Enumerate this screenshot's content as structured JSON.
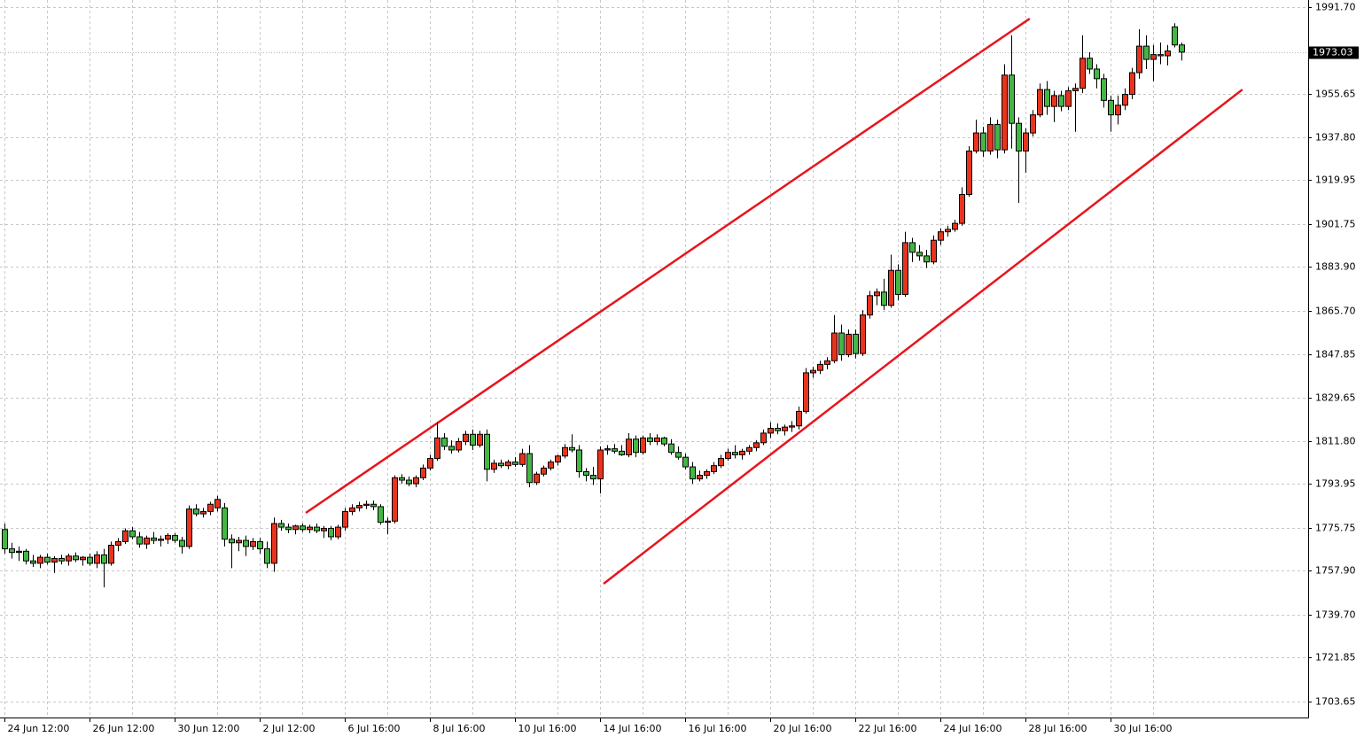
{
  "chart_data": {
    "type": "candlestick",
    "up_color": "#e8341c",
    "down_color": "#44b644",
    "wick_color": "#000000",
    "grid": true,
    "ylim": [
      1697.04,
      1994.64
    ],
    "yticks": [
      {
        "value": 1991.7,
        "label": "1991.70"
      },
      1955.65,
      {
        "value": 1937.8,
        "label": "1937.80"
      },
      1919.95,
      1901.75,
      {
        "value": 1883.9,
        "label": "1883.90"
      },
      {
        "value": 1865.7,
        "label": "1865.70"
      },
      1847.85,
      1829.65,
      {
        "value": 1811.8,
        "label": "1811.80"
      },
      1793.95,
      1775.75,
      {
        "value": 1757.9,
        "label": "1757.90"
      },
      {
        "value": 1739.7,
        "label": "1739.70"
      },
      1721.85,
      1703.65
    ],
    "last_price": 1973.03,
    "last_price_color": "#000000",
    "trend_lines": [
      {
        "color": "#e8141c",
        "x": [
          42.5,
          144.6
        ],
        "y": [
          1781.9,
          1986.9
        ]
      },
      {
        "color": "#e8141c",
        "x": [
          84.5,
          174.6
        ],
        "y": [
          1752.5,
          1957.5
        ]
      }
    ],
    "categories": [
      "24 Jun 12:00",
      null,
      null,
      null,
      null,
      null,
      null,
      null,
      null,
      null,
      null,
      null,
      "26 Jun 12:00",
      null,
      null,
      null,
      null,
      null,
      null,
      null,
      null,
      null,
      null,
      null,
      "30 Jun 12:00",
      null,
      null,
      null,
      null,
      null,
      null,
      null,
      null,
      null,
      null,
      null,
      "2 Jul 12:00",
      null,
      null,
      null,
      null,
      null,
      null,
      null,
      null,
      null,
      null,
      null,
      "6 Jul 16:00",
      null,
      null,
      null,
      null,
      null,
      null,
      null,
      null,
      null,
      null,
      null,
      "8 Jul 16:00",
      null,
      null,
      null,
      null,
      null,
      null,
      null,
      null,
      null,
      null,
      null,
      "10 Jul 16:00",
      null,
      null,
      null,
      null,
      null,
      null,
      null,
      null,
      null,
      null,
      null,
      "14 Jul 16:00",
      null,
      null,
      null,
      null,
      null,
      null,
      null,
      null,
      null,
      null,
      null,
      "16 Jul 16:00",
      null,
      null,
      null,
      null,
      null,
      null,
      null,
      null,
      null,
      null,
      null,
      "20 Jul 16:00",
      null,
      null,
      null,
      null,
      null,
      null,
      null,
      null,
      null,
      null,
      null,
      "22 Jul 16:00",
      null,
      null,
      null,
      null,
      null,
      null,
      null,
      null,
      null,
      null,
      null,
      "24 Jul 16:00",
      null,
      null,
      null,
      null,
      null,
      null,
      null,
      null,
      null,
      null,
      null,
      "28 Jul 16:00",
      null,
      null,
      null,
      null,
      null,
      null,
      null,
      null,
      null,
      null,
      null,
      "30 Jul 16:00",
      null,
      null,
      null,
      null,
      null,
      null,
      null,
      null,
      null,
      null
    ],
    "open": [
      1775,
      1767,
      1765.5,
      1766,
      1762,
      1761,
      1763.5,
      1761.5,
      1763,
      1762,
      1764,
      1762.5,
      1763.5,
      1761,
      1764.5,
      1761,
      1768.5,
      1770,
      1774.5,
      1772,
      1769,
      1771.5,
      1770.5,
      1771,
      1772.5,
      1770.5,
      1768,
      1783.5,
      1781.5,
      1782.5,
      1784,
      1784,
      1771,
      1769.5,
      1770.5,
      1768,
      1770,
      1767,
      1761,
      1777.5,
      1776,
      1775,
      1776.5,
      1775,
      1776,
      1774.5,
      1775.5,
      1772,
      1776,
      1782.5,
      1784,
      1785,
      1785.5,
      1784.5,
      1778,
      1778.5,
      1796.5,
      1795.5,
      1794,
      1796.5,
      1800.5,
      1804.5,
      1813,
      1809.5,
      1808,
      1811.5,
      1814.5,
      1810,
      1814.5,
      1800,
      1802.5,
      1801.5,
      1803,
      1802,
      1806.5,
      1794.5,
      1798,
      1800.5,
      1803,
      1805.5,
      1809,
      1808,
      1799,
      1797.5,
      1796,
      1808,
      1808.5,
      1807.5,
      1806,
      1812.5,
      1807,
      1813,
      1811.5,
      1813,
      1810.5,
      1807,
      1805,
      1801,
      1796,
      1797.5,
      1799,
      1801.5,
      1804.5,
      1807,
      1806,
      1807.5,
      1809,
      1811,
      1815,
      1817,
      1816,
      1817.5,
      1818,
      1824,
      1840,
      1841,
      1843.5,
      1845,
      1856.5,
      1847.5,
      1856,
      1848,
      1864,
      1872,
      1873.5,
      1868,
      1882.5,
      1872.5,
      1894,
      1890,
      1888.5,
      1886,
      1895,
      1898.5,
      1899.5,
      1902,
      1914,
      1932,
      1939.5,
      1932,
      1943,
      1932.5,
      1963.5,
      1943.5,
      1932,
      1939.5,
      1947,
      1957.5,
      1950.5,
      1955,
      1950.5,
      1957,
      1958,
      1970.5,
      1966,
      1962,
      1953,
      1947,
      1951,
      1955.5,
      1964.5,
      1975.5,
      1970,
      1972,
      1971.5,
      1983.5,
      1976
    ],
    "high": [
      1777.5,
      1769.5,
      1768,
      1767,
      1764.5,
      1764.5,
      1765,
      1764,
      1764.5,
      1765,
      1765.5,
      1764,
      1765,
      1766,
      1767,
      1770,
      1771.5,
      1775.5,
      1776,
      1774,
      1772.5,
      1774,
      1772.5,
      1773.5,
      1773.5,
      1772,
      1785,
      1785.5,
      1784,
      1786.5,
      1789,
      1786,
      1773,
      1772,
      1772.5,
      1771.5,
      1771.5,
      1770,
      1780,
      1779,
      1777.5,
      1777,
      1777.5,
      1777,
      1777.5,
      1776.5,
      1776.5,
      1777,
      1784,
      1785.5,
      1786.5,
      1787,
      1787,
      1785.5,
      1780,
      1797.5,
      1798,
      1797,
      1797.5,
      1802,
      1806,
      1819.5,
      1815,
      1812,
      1813,
      1816,
      1816.5,
      1816,
      1816.5,
      1804,
      1804,
      1804,
      1805,
      1808.5,
      1810,
      1799,
      1801.5,
      1804,
      1806,
      1810.5,
      1814.5,
      1810,
      1800.5,
      1801,
      1809.5,
      1810,
      1810.5,
      1810,
      1815,
      1814,
      1814,
      1815,
      1814.5,
      1813.5,
      1812.5,
      1809.5,
      1806.5,
      1803,
      1799.5,
      1800,
      1803,
      1806,
      1808.5,
      1810,
      1808.5,
      1810,
      1812,
      1816.5,
      1819.5,
      1819,
      1818.5,
      1820,
      1826,
      1842,
      1842.5,
      1845,
      1846.5,
      1864,
      1860,
      1858,
      1858,
      1866,
      1874,
      1875,
      1879,
      1889,
      1885,
      1898.5,
      1896,
      1893,
      1891,
      1897,
      1900,
      1901,
      1903.5,
      1917,
      1934,
      1945,
      1942,
      1946,
      1945,
      1968,
      1980,
      1946,
      1941.5,
      1949,
      1960,
      1961,
      1957,
      1957,
      1958.5,
      1960,
      1980,
      1973,
      1968,
      1964,
      1955,
      1955,
      1958,
      1966.5,
      1982.5,
      1980,
      1976,
      1977,
      1976,
      1985,
      1977
    ],
    "low": [
      1765,
      1763,
      1762,
      1760.5,
      1759.5,
      1759,
      1760.5,
      1757,
      1760.5,
      1760,
      1761.5,
      1760,
      1760,
      1759,
      1751,
      1760,
      1766,
      1769,
      1771,
      1767.5,
      1767,
      1769,
      1768,
      1769,
      1769.5,
      1765,
      1767,
      1780.5,
      1780,
      1781,
      1782.5,
      1768,
      1759,
      1766,
      1764,
      1766.5,
      1765,
      1759,
      1757.5,
      1774.5,
      1773.5,
      1773,
      1774,
      1773.5,
      1773.5,
      1771.5,
      1770.5,
      1771,
      1774.5,
      1781,
      1782.5,
      1783.5,
      1783,
      1777,
      1773,
      1777.5,
      1794,
      1793,
      1792.5,
      1795.5,
      1799.5,
      1803.5,
      1808,
      1806.5,
      1807,
      1810,
      1808,
      1809,
      1795,
      1798.5,
      1800.5,
      1800,
      1801,
      1801,
      1792.5,
      1793.5,
      1797,
      1799.5,
      1801.5,
      1804.5,
      1807,
      1796.5,
      1795,
      1793.5,
      1790,
      1806,
      1806.5,
      1805.5,
      1805,
      1805,
      1806,
      1810,
      1810,
      1809.5,
      1806,
      1804,
      1800,
      1794,
      1795,
      1796,
      1798,
      1800.5,
      1803.5,
      1804.5,
      1804,
      1806,
      1807.5,
      1810,
      1813,
      1814.5,
      1814,
      1815.5,
      1816.5,
      1823,
      1838,
      1839.5,
      1841.5,
      1844,
      1845,
      1846.5,
      1846,
      1847,
      1862.5,
      1868,
      1866,
      1867,
      1870,
      1871.5,
      1886,
      1886.5,
      1883.5,
      1885,
      1893,
      1896.5,
      1898.5,
      1901,
      1913,
      1931,
      1929.5,
      1930.5,
      1929,
      1931,
      1933,
      1910.5,
      1923,
      1938,
      1946,
      1947,
      1944,
      1948.5,
      1949,
      1940,
      1956,
      1964,
      1958,
      1950,
      1940,
      1943,
      1949,
      1953.5,
      1962,
      1966,
      1961,
      1968,
      1967.5,
      1975,
      1969.5
    ],
    "close": [
      1767,
      1765.5,
      1766,
      1762,
      1761,
      1763.5,
      1761.5,
      1763,
      1762,
      1764,
      1762.5,
      1763.5,
      1761,
      1764.5,
      1761,
      1768.5,
      1770,
      1774.5,
      1772,
      1769,
      1771.5,
      1770.5,
      1771,
      1772.5,
      1770.5,
      1768,
      1783.5,
      1781.5,
      1782.5,
      1785.5,
      1787.5,
      1771,
      1769.5,
      1770.5,
      1768,
      1770,
      1767,
      1761,
      1777.5,
      1776,
      1775,
      1776.5,
      1775,
      1776,
      1774.5,
      1775.5,
      1772,
      1776,
      1782.5,
      1784,
      1785,
      1785.5,
      1784.5,
      1778,
      1778.5,
      1796.5,
      1795.5,
      1794,
      1796.5,
      1800.5,
      1804.5,
      1813,
      1809.5,
      1808,
      1811.5,
      1814.5,
      1810,
      1814.5,
      1800,
      1802.5,
      1801.5,
      1803,
      1802,
      1806.5,
      1794.5,
      1798,
      1800.5,
      1803,
      1805.5,
      1809,
      1808,
      1799,
      1797.5,
      1796,
      1808,
      1808.5,
      1807.5,
      1806,
      1812.5,
      1807,
      1813,
      1811.5,
      1813,
      1810.5,
      1807,
      1805,
      1801,
      1796,
      1797.5,
      1799,
      1801.5,
      1804.5,
      1807,
      1806,
      1807.5,
      1809,
      1811,
      1815,
      1817,
      1816,
      1817.5,
      1818,
      1824,
      1840,
      1841,
      1843.5,
      1845,
      1856.5,
      1847.5,
      1856,
      1848,
      1864,
      1872,
      1873.5,
      1868,
      1882.5,
      1872.5,
      1894,
      1890,
      1888.5,
      1886,
      1895,
      1898.5,
      1899.5,
      1902,
      1914,
      1932,
      1939.5,
      1932,
      1943,
      1932.5,
      1963.5,
      1943.5,
      1932,
      1939.5,
      1947,
      1957.5,
      1950.5,
      1955,
      1950.5,
      1957,
      1958,
      1970.5,
      1966,
      1962,
      1953,
      1947,
      1951,
      1955.5,
      1964.5,
      1975.5,
      1970,
      1972,
      1971.5,
      1973.5,
      1976,
      1973.03
    ]
  }
}
